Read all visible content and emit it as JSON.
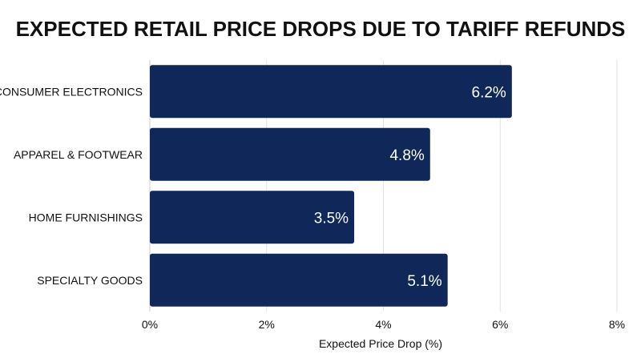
{
  "chart_data": {
    "type": "bar",
    "orientation": "horizontal",
    "title": "EXPECTED RETAIL PRICE DROPS DUE TO TARIFF REFUNDS",
    "xlabel": "Expected Price Drop (%)",
    "ylabel": "",
    "categories": [
      "CONSUMER ELECTRONICS",
      "APPAREL & FOOTWEAR",
      "HOME FURNISHINGS",
      "SPECIALTY GOODS"
    ],
    "values": [
      6.2,
      4.8,
      3.5,
      5.1
    ],
    "data_labels": [
      "6.2%",
      "4.8%",
      "3.5%",
      "5.1%"
    ],
    "xlim": [
      0,
      8
    ],
    "ticks": [
      0,
      2,
      4,
      6,
      8
    ],
    "tick_labels": [
      "0%",
      "2%",
      "4%",
      "6%",
      "8%"
    ],
    "grid": true,
    "legend": "none",
    "bar_color": "#10275a",
    "grid_color": "#e2e2e2"
  }
}
